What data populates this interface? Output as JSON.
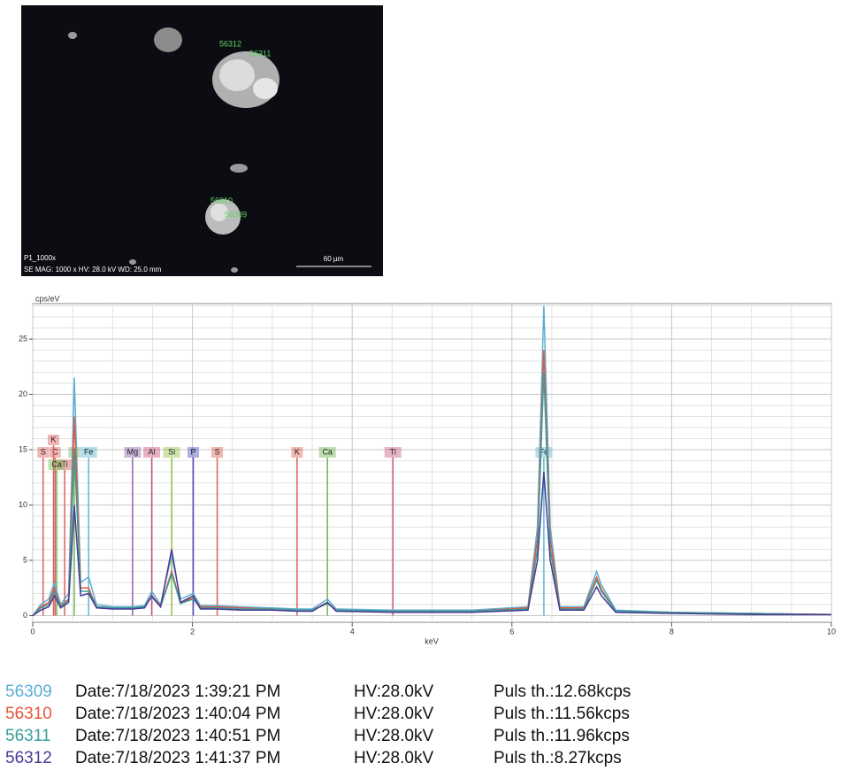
{
  "image": {
    "caption": "P1_1000x",
    "info": "SE  MAG: 1000 x  HV: 28.0 kV  WD: 25.0 mm",
    "scale_bar": "60 µm"
  },
  "chart_data": {
    "type": "line",
    "xlabel": "keV",
    "ylabel": "cps/eV",
    "x": [
      0,
      0.1,
      0.2,
      0.27,
      0.35,
      0.45,
      0.52,
      0.6,
      0.7,
      0.8,
      1.0,
      1.25,
      1.4,
      1.49,
      1.6,
      1.74,
      1.85,
      2.01,
      2.1,
      2.31,
      2.6,
      3.0,
      3.31,
      3.5,
      3.69,
      3.8,
      4.5,
      5.5,
      6.2,
      6.32,
      6.4,
      6.48,
      6.6,
      6.9,
      7.0,
      7.06,
      7.12,
      7.3,
      8,
      9,
      10
    ],
    "xlim": [
      0,
      10
    ],
    "ylim": [
      -0.6,
      28.2
    ],
    "xticks": [
      0,
      2,
      4,
      6,
      8,
      10
    ],
    "yticks": [
      0,
      5,
      10,
      15,
      20,
      25
    ],
    "xminorticks": [
      0.5,
      1,
      1.5,
      2.5,
      3,
      3.5,
      4.5,
      5,
      5.5,
      6.5,
      7,
      7.5,
      8.5,
      9,
      9.5
    ],
    "yminorticks": [
      1,
      2,
      3,
      4,
      6,
      7,
      8,
      9,
      11,
      12,
      13,
      14,
      16,
      17,
      18,
      19,
      21,
      22,
      23,
      24,
      26,
      27,
      28
    ],
    "grid": true,
    "series": [
      {
        "name": "56309",
        "color": "#5aaed6",
        "date": "Date:7/18/2023 1:39:21 PM",
        "hv": "HV:28.0kV",
        "puls": "Puls th.:12.68kcps",
        "values": [
          0,
          1,
          1.5,
          3,
          1,
          2,
          21.5,
          3,
          3.5,
          1,
          0.8,
          0.8,
          0.9,
          2.2,
          1,
          5.5,
          1.5,
          2,
          0.9,
          0.9,
          0.8,
          0.7,
          0.6,
          0.6,
          1.5,
          0.6,
          0.5,
          0.5,
          0.8,
          8,
          28,
          8,
          0.8,
          0.8,
          2.8,
          4,
          2.8,
          0.5,
          0.3,
          0.2,
          0.1
        ]
      },
      {
        "name": "56310",
        "color": "#e8553a",
        "date": "Date:7/18/2023 1:40:04 PM",
        "hv": "HV:28.0kV",
        "puls": "Puls th.:11.56kcps",
        "values": [
          0,
          0.8,
          1.2,
          2.5,
          0.9,
          1.5,
          18,
          2.5,
          2.5,
          0.8,
          0.7,
          0.7,
          0.8,
          1.8,
          0.9,
          4,
          1.2,
          1.6,
          0.8,
          0.8,
          0.7,
          0.6,
          0.5,
          0.5,
          1.2,
          0.5,
          0.4,
          0.4,
          0.7,
          7,
          24,
          7,
          0.7,
          0.7,
          2.4,
          3.5,
          2.4,
          0.4,
          0.3,
          0.2,
          0.1
        ]
      },
      {
        "name": "56311",
        "color": "#3a9e98",
        "date": "Date:7/18/2023 1:40:51 PM",
        "hv": "HV:28.0kV",
        "puls": "Puls th.:11.96kcps",
        "values": [
          0,
          0.7,
          1,
          2.2,
          0.8,
          1.4,
          15,
          2.2,
          2.2,
          0.8,
          0.7,
          0.7,
          0.8,
          1.7,
          0.8,
          3.8,
          1.1,
          1.5,
          0.7,
          0.7,
          0.6,
          0.6,
          0.5,
          0.5,
          1.1,
          0.5,
          0.4,
          0.4,
          0.6,
          6,
          22,
          6,
          0.6,
          0.6,
          2.2,
          3.2,
          2.2,
          0.4,
          0.3,
          0.2,
          0.1
        ]
      },
      {
        "name": "56312",
        "color": "#4a3a96",
        "date": "Date:7/18/2023 1:41:37 PM",
        "hv": "HV:28.0kV",
        "puls": "Puls th.:8.27kcps",
        "values": [
          0,
          0.5,
          0.8,
          1.8,
          0.7,
          1.2,
          10,
          1.8,
          2,
          0.7,
          0.6,
          0.6,
          0.7,
          1.8,
          0.8,
          6,
          1.2,
          1.8,
          0.6,
          0.6,
          0.5,
          0.5,
          0.4,
          0.4,
          1.2,
          0.4,
          0.3,
          0.3,
          0.5,
          5,
          13,
          5,
          0.5,
          0.5,
          1.8,
          2.6,
          1.8,
          0.3,
          0.2,
          0.1,
          0.1
        ]
      }
    ],
    "peak_labels": [
      {
        "label": "S",
        "x": 0.13,
        "color": "#e06060"
      },
      {
        "label": "C",
        "x": 0.28,
        "color": "#e06060"
      },
      {
        "label": "K",
        "x": 0.26,
        "color": "#e06060"
      },
      {
        "label": "Ti",
        "x": 0.4,
        "color": "#e06060"
      },
      {
        "label": "Ca",
        "x": 0.3,
        "color": "#70b850"
      },
      {
        "label": "O",
        "x": 0.52,
        "color": "#70b850"
      },
      {
        "label": "Fe",
        "x": 0.7,
        "color": "#60b8d0"
      },
      {
        "label": "Mg",
        "x": 1.25,
        "color": "#9060b0"
      },
      {
        "label": "Al",
        "x": 1.49,
        "color": "#d05080"
      },
      {
        "label": "Si",
        "x": 1.74,
        "color": "#90c040"
      },
      {
        "label": "P",
        "x": 2.01,
        "color": "#5050c0"
      },
      {
        "label": "S",
        "x": 2.31,
        "color": "#e06050"
      },
      {
        "label": "K",
        "x": 3.31,
        "color": "#e06050"
      },
      {
        "label": "Ca",
        "x": 3.69,
        "color": "#70b850"
      },
      {
        "label": "Ti",
        "x": 4.51,
        "color": "#d06080"
      },
      {
        "label": "Fe",
        "x": 6.4,
        "color": "#60b8d0"
      }
    ]
  }
}
